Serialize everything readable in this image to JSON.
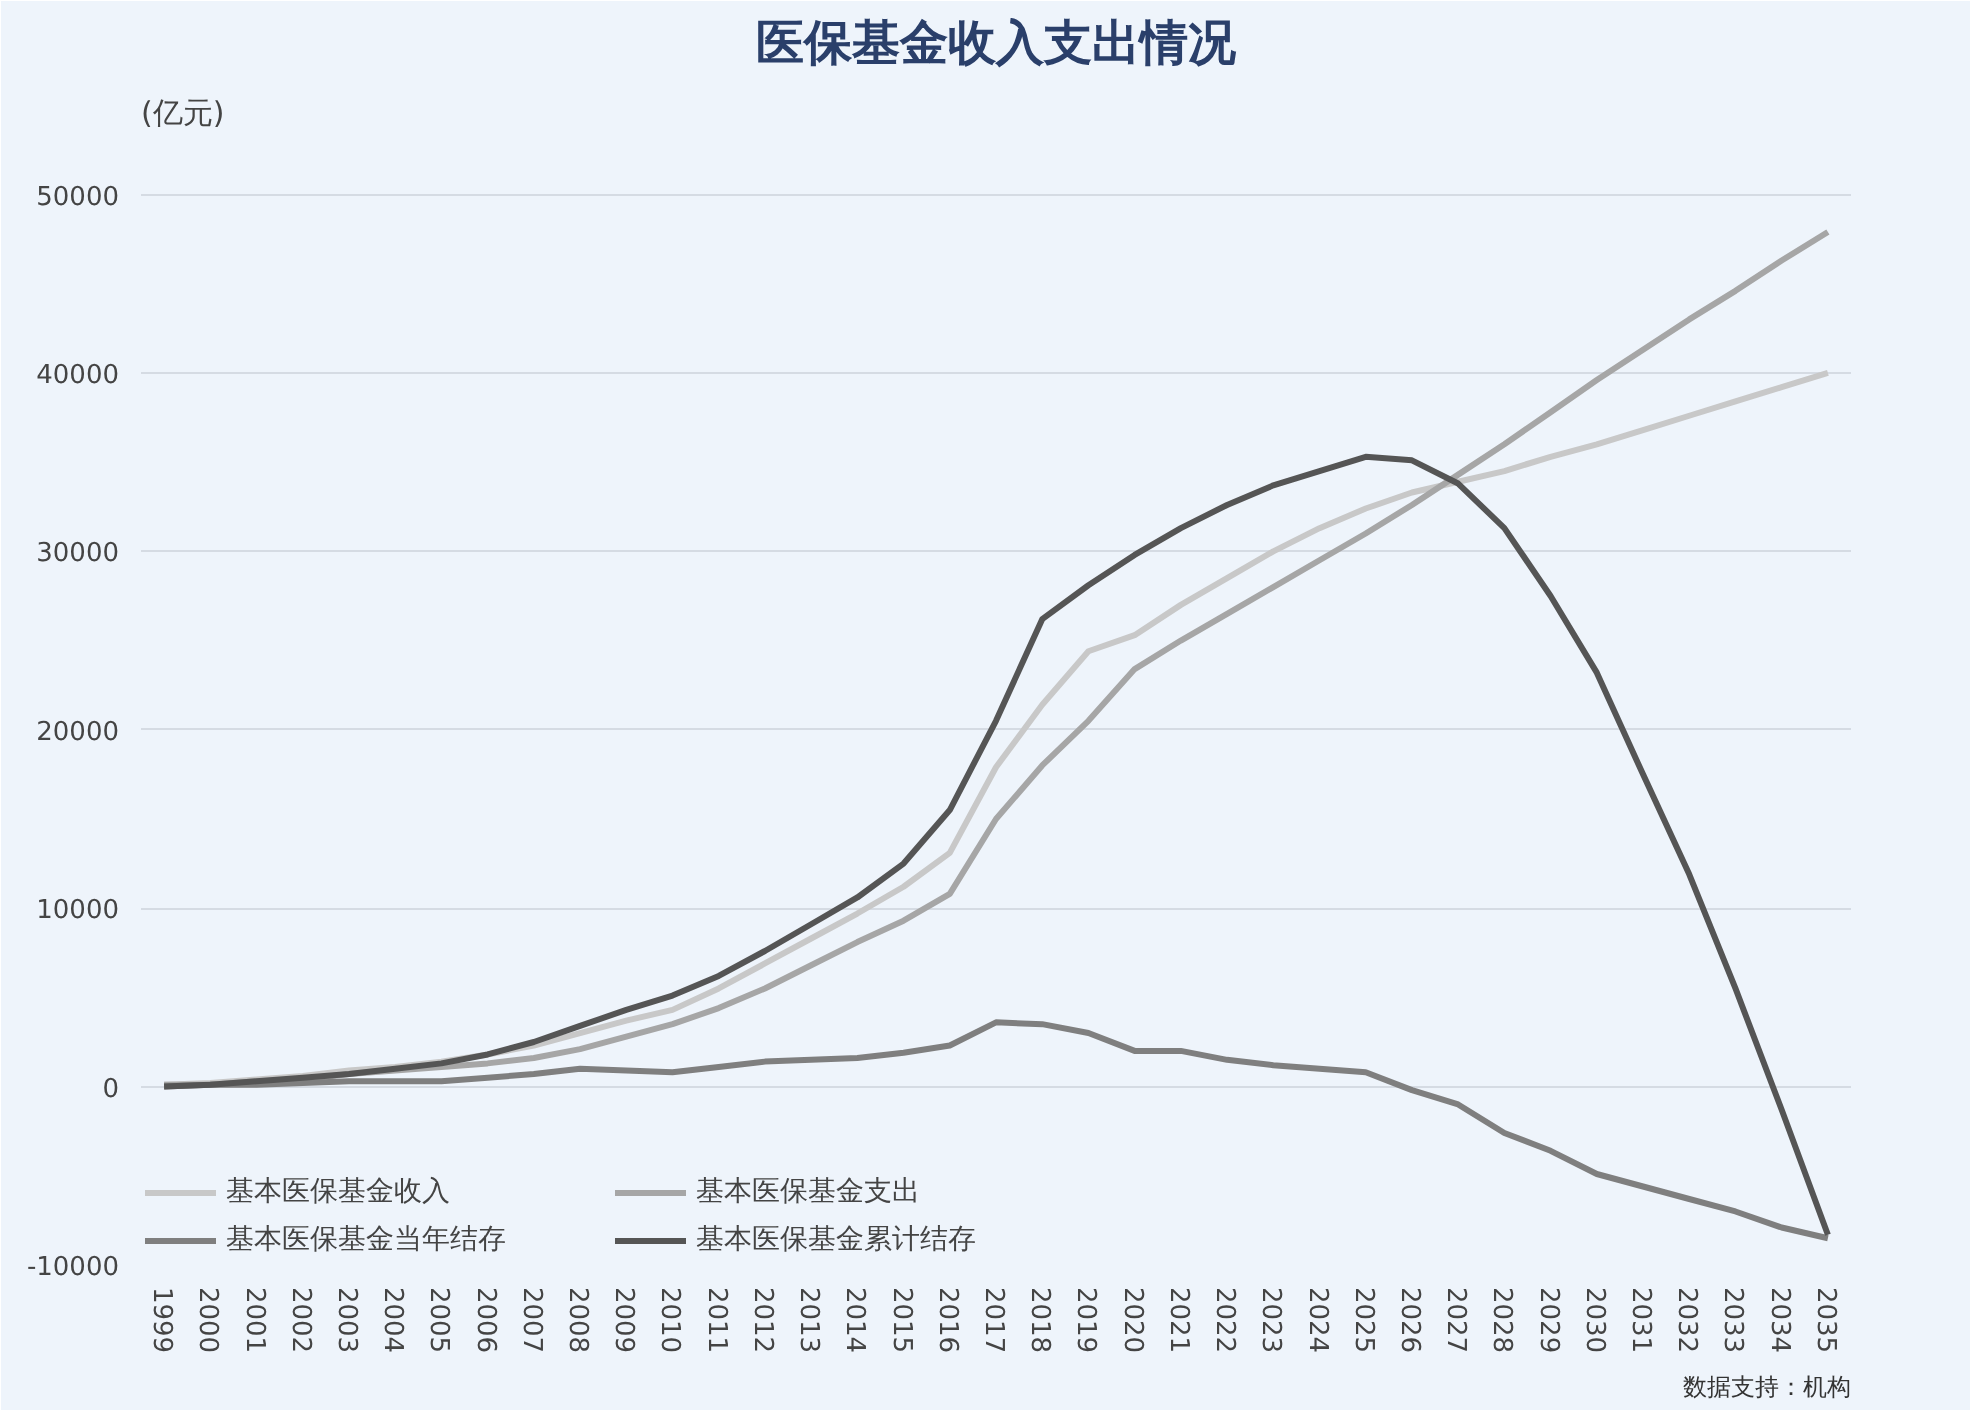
{
  "chart_data": {
    "type": "line",
    "title": "医保基金收入支出情况",
    "ylabel": "(亿元)",
    "categories": [
      "1999",
      "2000",
      "2001",
      "2002",
      "2003",
      "2004",
      "2005",
      "2006",
      "2007",
      "2008",
      "2009",
      "2010",
      "2011",
      "2012",
      "2013",
      "2014",
      "2015",
      "2016",
      "2017",
      "2018",
      "2019",
      "2020",
      "2021",
      "2022",
      "2023",
      "2024",
      "2025",
      "2026",
      "2027",
      "2028",
      "2029",
      "2030",
      "2031",
      "2032",
      "2033",
      "2034",
      "2035"
    ],
    "series": [
      {
        "name": "基本医保基金收入",
        "color": "#c8c8c8",
        "values": [
          100,
          200,
          400,
          600,
          900,
          1100,
          1400,
          1800,
          2300,
          3000,
          3700,
          4300,
          5500,
          6900,
          8300,
          9700,
          11200,
          13100,
          17900,
          21400,
          24400,
          25300,
          27000,
          28500,
          30000,
          31300,
          32400,
          33300,
          33900,
          34500,
          35300,
          36000,
          36800,
          37600,
          38400,
          39200,
          40000
        ]
      },
      {
        "name": "基本医保基金支出",
        "color": "#a6a6a6",
        "values": [
          100,
          100,
          300,
          400,
          700,
          900,
          1100,
          1300,
          1600,
          2100,
          2800,
          3500,
          4400,
          5500,
          6800,
          8100,
          9300,
          10800,
          15000,
          18000,
          20500,
          23400,
          25000,
          26500,
          28000,
          29500,
          31000,
          32600,
          34300,
          36000,
          37800,
          39600,
          41300,
          43000,
          44600,
          46300,
          47900
        ]
      },
      {
        "name": "基本医保基金当年结存",
        "color": "#7f7f7f",
        "values": [
          0,
          100,
          100,
          200,
          300,
          300,
          300,
          500,
          700,
          1000,
          900,
          800,
          1100,
          1400,
          1500,
          1600,
          1900,
          2300,
          3600,
          3500,
          3000,
          2000,
          2000,
          1500,
          1200,
          1000,
          800,
          -200,
          -1000,
          -2600,
          -3600,
          -4900,
          -5600,
          -6300,
          -7000,
          -7900,
          -8500
        ]
      },
      {
        "name": "基本医保基金累计结存",
        "color": "#555555",
        "values": [
          0,
          100,
          300,
          500,
          700,
          1000,
          1300,
          1800,
          2500,
          3400,
          4300,
          5100,
          6200,
          7600,
          9100,
          10600,
          12500,
          15500,
          20500,
          26200,
          28100,
          29800,
          31300,
          32600,
          33700,
          34500,
          35300,
          35100,
          33800,
          31300,
          27500,
          23200,
          17500,
          11900,
          5500,
          -1300,
          -8300
        ]
      }
    ],
    "ylim": [
      -10000,
      53000
    ],
    "yticks": [
      -10000,
      0,
      10000,
      20000,
      30000,
      40000,
      50000
    ],
    "grid": "y",
    "legend": "bottom left",
    "annotations": [
      "数据支持：机构"
    ]
  }
}
